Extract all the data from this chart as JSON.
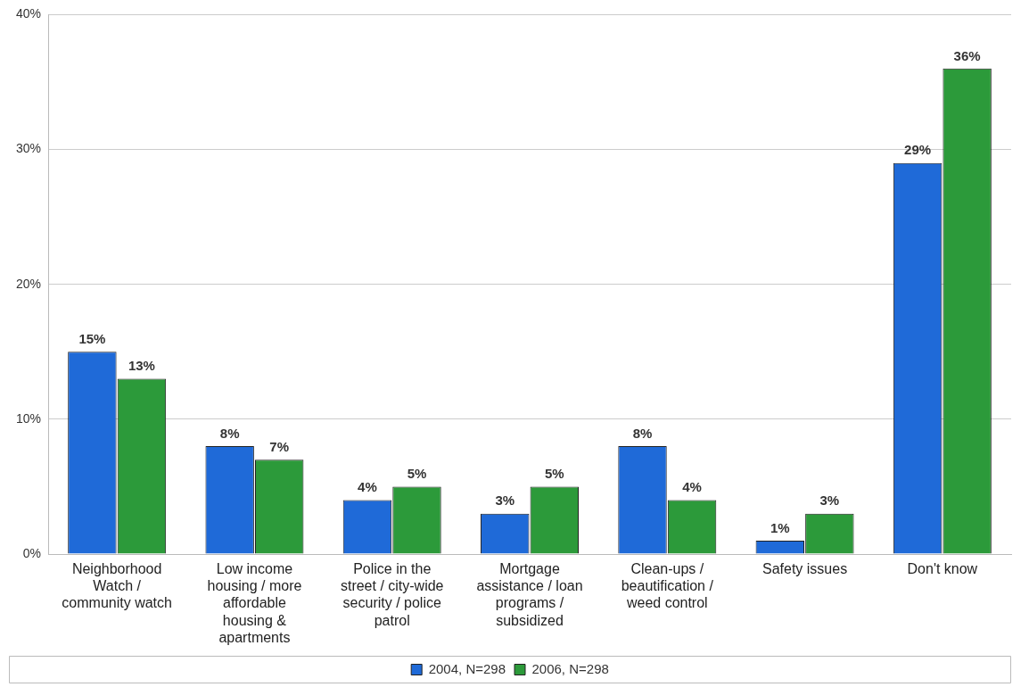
{
  "chart_data": {
    "type": "bar",
    "categories": [
      "Neighborhood Watch / community watch",
      "Low income housing / more affordable housing & apartments",
      "Police in the street / city-wide security / police patrol",
      "Mortgage assistance / loan programs / subsidized",
      "Clean-ups / beautification / weed control",
      "Safety issues",
      "Don't know"
    ],
    "series": [
      {
        "name": "2004, N=298",
        "color": "#1f6ad8",
        "values": [
          15,
          8,
          4,
          3,
          8,
          1,
          29
        ],
        "value_labels": [
          "15%",
          "8%",
          "4%",
          "3%",
          "8%",
          "1%",
          "29%"
        ]
      },
      {
        "name": "2006, N=298",
        "color": "#2c9a3a",
        "values": [
          13,
          7,
          5,
          5,
          4,
          3,
          36
        ],
        "value_labels": [
          "13%",
          "7%",
          "5%",
          "5%",
          "4%",
          "3%",
          "36%"
        ]
      }
    ],
    "ylim": [
      0,
      40
    ],
    "yticks": [
      {
        "value": 0,
        "label": "0%"
      },
      {
        "value": 10,
        "label": "10%"
      },
      {
        "value": 20,
        "label": "20%"
      },
      {
        "value": 30,
        "label": "30%"
      },
      {
        "value": 40,
        "label": "40%"
      }
    ],
    "grid": "y",
    "legend": "bottom"
  }
}
